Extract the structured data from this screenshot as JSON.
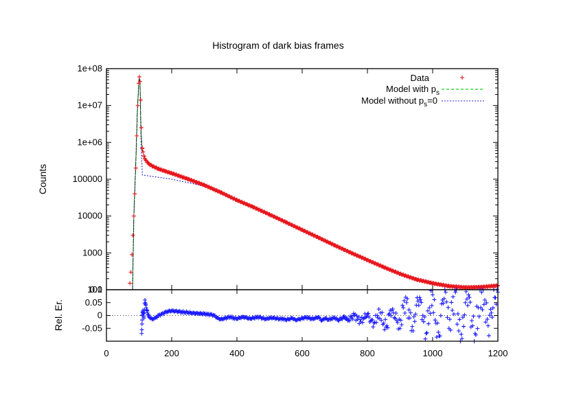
{
  "chart_data": [
    {
      "type": "scatter",
      "title": "Histrogram of dark bias frames",
      "xlabel": "",
      "ylabel": "Counts",
      "yscale": "log",
      "xlim": [
        0,
        1200
      ],
      "ylim": [
        100,
        100000000
      ],
      "ytick_labels": [
        "100",
        "1000",
        "10000",
        "100000",
        "1e+06",
        "1e+07",
        "1e+08"
      ],
      "grid": false,
      "legend_position": "top-right",
      "colors": {
        "data": "#e8141b",
        "model_ps": "#19d119",
        "model_no_ps": "#2020cc",
        "model_black": "#000000"
      },
      "series": [
        {
          "name": "Data",
          "marker": "plus",
          "points": [
            [
              72,
              150
            ],
            [
              75,
              300
            ],
            [
              78,
              900
            ],
            [
              81,
              3000
            ],
            [
              84,
              10000
            ],
            [
              87,
              40000
            ],
            [
              90,
              200000
            ],
            [
              93,
              1500000
            ],
            [
              96,
              10000000
            ],
            [
              99,
              40000000
            ],
            [
              101,
              60000000
            ],
            [
              103,
              45000000
            ],
            [
              105,
              14000000
            ],
            [
              107,
              2500000
            ],
            [
              110,
              700000
            ],
            [
              115,
              420000
            ],
            [
              120,
              330000
            ],
            [
              130,
              260000
            ],
            [
              140,
              228000
            ],
            [
              160,
              190000
            ],
            [
              180,
              165000
            ],
            [
              200,
              145000
            ],
            [
              250,
              101000
            ],
            [
              300,
              69000
            ],
            [
              350,
              44000
            ],
            [
              400,
              27000
            ],
            [
              450,
              17500
            ],
            [
              500,
              11000
            ],
            [
              550,
              6800
            ],
            [
              600,
              4200
            ],
            [
              650,
              2600
            ],
            [
              700,
              1600
            ],
            [
              750,
              1000
            ],
            [
              800,
              640
            ],
            [
              850,
              410
            ],
            [
              900,
              270
            ],
            [
              950,
              190
            ],
            [
              1000,
              150
            ],
            [
              1050,
              125
            ],
            [
              1100,
              115
            ],
            [
              1150,
              118
            ],
            [
              1200,
              130
            ]
          ]
        },
        {
          "name": "Model with p_s",
          "line_style": "dashed",
          "points": [
            [
              80,
              100
            ],
            [
              84,
              10000
            ],
            [
              90,
              300000
            ],
            [
              95,
              8000000
            ],
            [
              100,
              55000000
            ],
            [
              103,
              40000000
            ],
            [
              106,
              2000000
            ],
            [
              110,
              600000
            ],
            [
              120,
              340000
            ],
            [
              150,
              210000
            ],
            [
              200,
              145000
            ],
            [
              300,
              69000
            ],
            [
              400,
              27000
            ],
            [
              500,
              11000
            ],
            [
              600,
              4200
            ],
            [
              700,
              1600
            ],
            [
              800,
              640
            ],
            [
              900,
              260
            ],
            [
              1000,
              140
            ],
            [
              1100,
              115
            ],
            [
              1200,
              130
            ]
          ]
        },
        {
          "name": "Model without p_s=0",
          "line_style": "dotted",
          "points": [
            [
              80,
              100
            ],
            [
              84,
              10000
            ],
            [
              90,
              300000
            ],
            [
              95,
              8000000
            ],
            [
              100,
              55000000
            ],
            [
              103,
              40000000
            ],
            [
              106,
              1000000
            ],
            [
              110,
              130000
            ],
            [
              200,
              100000
            ],
            [
              300,
              65000
            ],
            [
              400,
              26000
            ],
            [
              500,
              10800
            ],
            [
              600,
              4200
            ],
            [
              700,
              1600
            ],
            [
              800,
              640
            ],
            [
              900,
              260
            ],
            [
              1000,
              140
            ],
            [
              1100,
              115
            ],
            [
              1200,
              130
            ]
          ]
        }
      ]
    },
    {
      "type": "scatter",
      "xlabel": "",
      "ylabel": "Rel. Er.",
      "xlim": [
        0,
        1200
      ],
      "ylim": [
        -0.1,
        0.1
      ],
      "xtick_labels": [
        "0",
        "200",
        "400",
        "600",
        "800",
        "1000",
        "1200"
      ],
      "ytick_labels": [
        "-0.05",
        "0",
        "0.05",
        "0.1"
      ],
      "reference_line": 0,
      "colors": {
        "marker": "#1a1aff"
      },
      "series": [
        {
          "marker": "plus",
          "points": [
            [
              108,
              -0.07
            ],
            [
              110,
              0.0
            ],
            [
              112,
              0.02
            ],
            [
              115,
              -0.01
            ],
            [
              118,
              0.06
            ],
            [
              122,
              0.03
            ],
            [
              126,
              0.01
            ],
            [
              130,
              -0.005
            ],
            [
              140,
              -0.015
            ],
            [
              150,
              -0.01
            ],
            [
              160,
              0.0
            ],
            [
              170,
              0.005
            ],
            [
              180,
              0.012
            ],
            [
              190,
              0.016
            ],
            [
              200,
              0.018
            ],
            [
              210,
              0.017
            ],
            [
              220,
              0.016
            ],
            [
              230,
              0.014
            ],
            [
              240,
              0.013
            ],
            [
              250,
              0.012
            ],
            [
              260,
              0.01
            ],
            [
              270,
              0.009
            ],
            [
              280,
              0.008
            ],
            [
              290,
              0.007
            ],
            [
              300,
              0.006
            ],
            [
              310,
              0.004
            ],
            [
              320,
              0.003
            ],
            [
              330,
              0.0
            ],
            [
              340,
              -0.01
            ],
            [
              350,
              -0.015
            ],
            [
              360,
              -0.012
            ],
            [
              370,
              -0.008
            ],
            [
              380,
              -0.005
            ],
            [
              390,
              -0.01
            ],
            [
              400,
              -0.012
            ],
            [
              410,
              -0.008
            ],
            [
              420,
              -0.006
            ],
            [
              430,
              -0.009
            ],
            [
              440,
              -0.013
            ],
            [
              450,
              -0.01
            ],
            [
              460,
              -0.008
            ],
            [
              470,
              -0.007
            ],
            [
              480,
              -0.012
            ],
            [
              490,
              -0.014
            ],
            [
              500,
              -0.01
            ],
            [
              510,
              -0.009
            ],
            [
              520,
              -0.011
            ],
            [
              530,
              -0.013
            ],
            [
              540,
              -0.012
            ],
            [
              550,
              -0.016
            ],
            [
              560,
              -0.014
            ],
            [
              570,
              -0.01
            ],
            [
              580,
              -0.018
            ],
            [
              590,
              -0.015
            ],
            [
              600,
              -0.012
            ],
            [
              610,
              -0.008
            ],
            [
              620,
              -0.01
            ],
            [
              630,
              -0.014
            ],
            [
              640,
              -0.011
            ],
            [
              650,
              -0.006
            ],
            [
              660,
              -0.02
            ],
            [
              670,
              -0.01
            ],
            [
              680,
              -0.016
            ],
            [
              690,
              -0.012
            ],
            [
              700,
              -0.008
            ],
            [
              710,
              -0.018
            ],
            [
              720,
              -0.012
            ],
            [
              730,
              -0.005
            ],
            [
              740,
              -0.02
            ],
            [
              750,
              -0.01
            ],
            [
              760,
              0.0
            ],
            [
              770,
              -0.015
            ],
            [
              780,
              -0.025
            ],
            [
              790,
              -0.01
            ],
            [
              800,
              0.005
            ],
            [
              810,
              -0.02
            ],
            [
              820,
              -0.03
            ],
            [
              830,
              0.0
            ],
            [
              840,
              0.01
            ],
            [
              850,
              -0.03
            ],
            [
              860,
              -0.04
            ],
            [
              870,
              0.02
            ],
            [
              880,
              0.01
            ],
            [
              890,
              -0.02
            ],
            [
              900,
              -0.05
            ],
            [
              910,
              0.03
            ],
            [
              920,
              0.05
            ],
            [
              930,
              -0.01
            ],
            [
              940,
              -0.06
            ],
            [
              950,
              0.04
            ],
            [
              960,
              0.07
            ],
            [
              970,
              0.0
            ],
            [
              980,
              -0.07
            ],
            [
              990,
              0.03
            ],
            [
              1000,
              0.08
            ],
            [
              1010,
              -0.03
            ],
            [
              1020,
              -0.08
            ],
            [
              1030,
              0.06
            ],
            [
              1040,
              0.09
            ],
            [
              1050,
              -0.05
            ],
            [
              1060,
              0.02
            ],
            [
              1070,
              0.09
            ],
            [
              1080,
              -0.06
            ],
            [
              1090,
              -0.09
            ],
            [
              1100,
              0.05
            ],
            [
              1110,
              0.08
            ],
            [
              1120,
              -0.02
            ],
            [
              1130,
              -0.07
            ],
            [
              1140,
              0.03
            ],
            [
              1150,
              0.09
            ],
            [
              1160,
              0.06
            ],
            [
              1170,
              -0.04
            ],
            [
              1180,
              0.01
            ],
            [
              1190,
              0.07
            ],
            [
              1200,
              0.09
            ]
          ]
        }
      ]
    }
  ]
}
